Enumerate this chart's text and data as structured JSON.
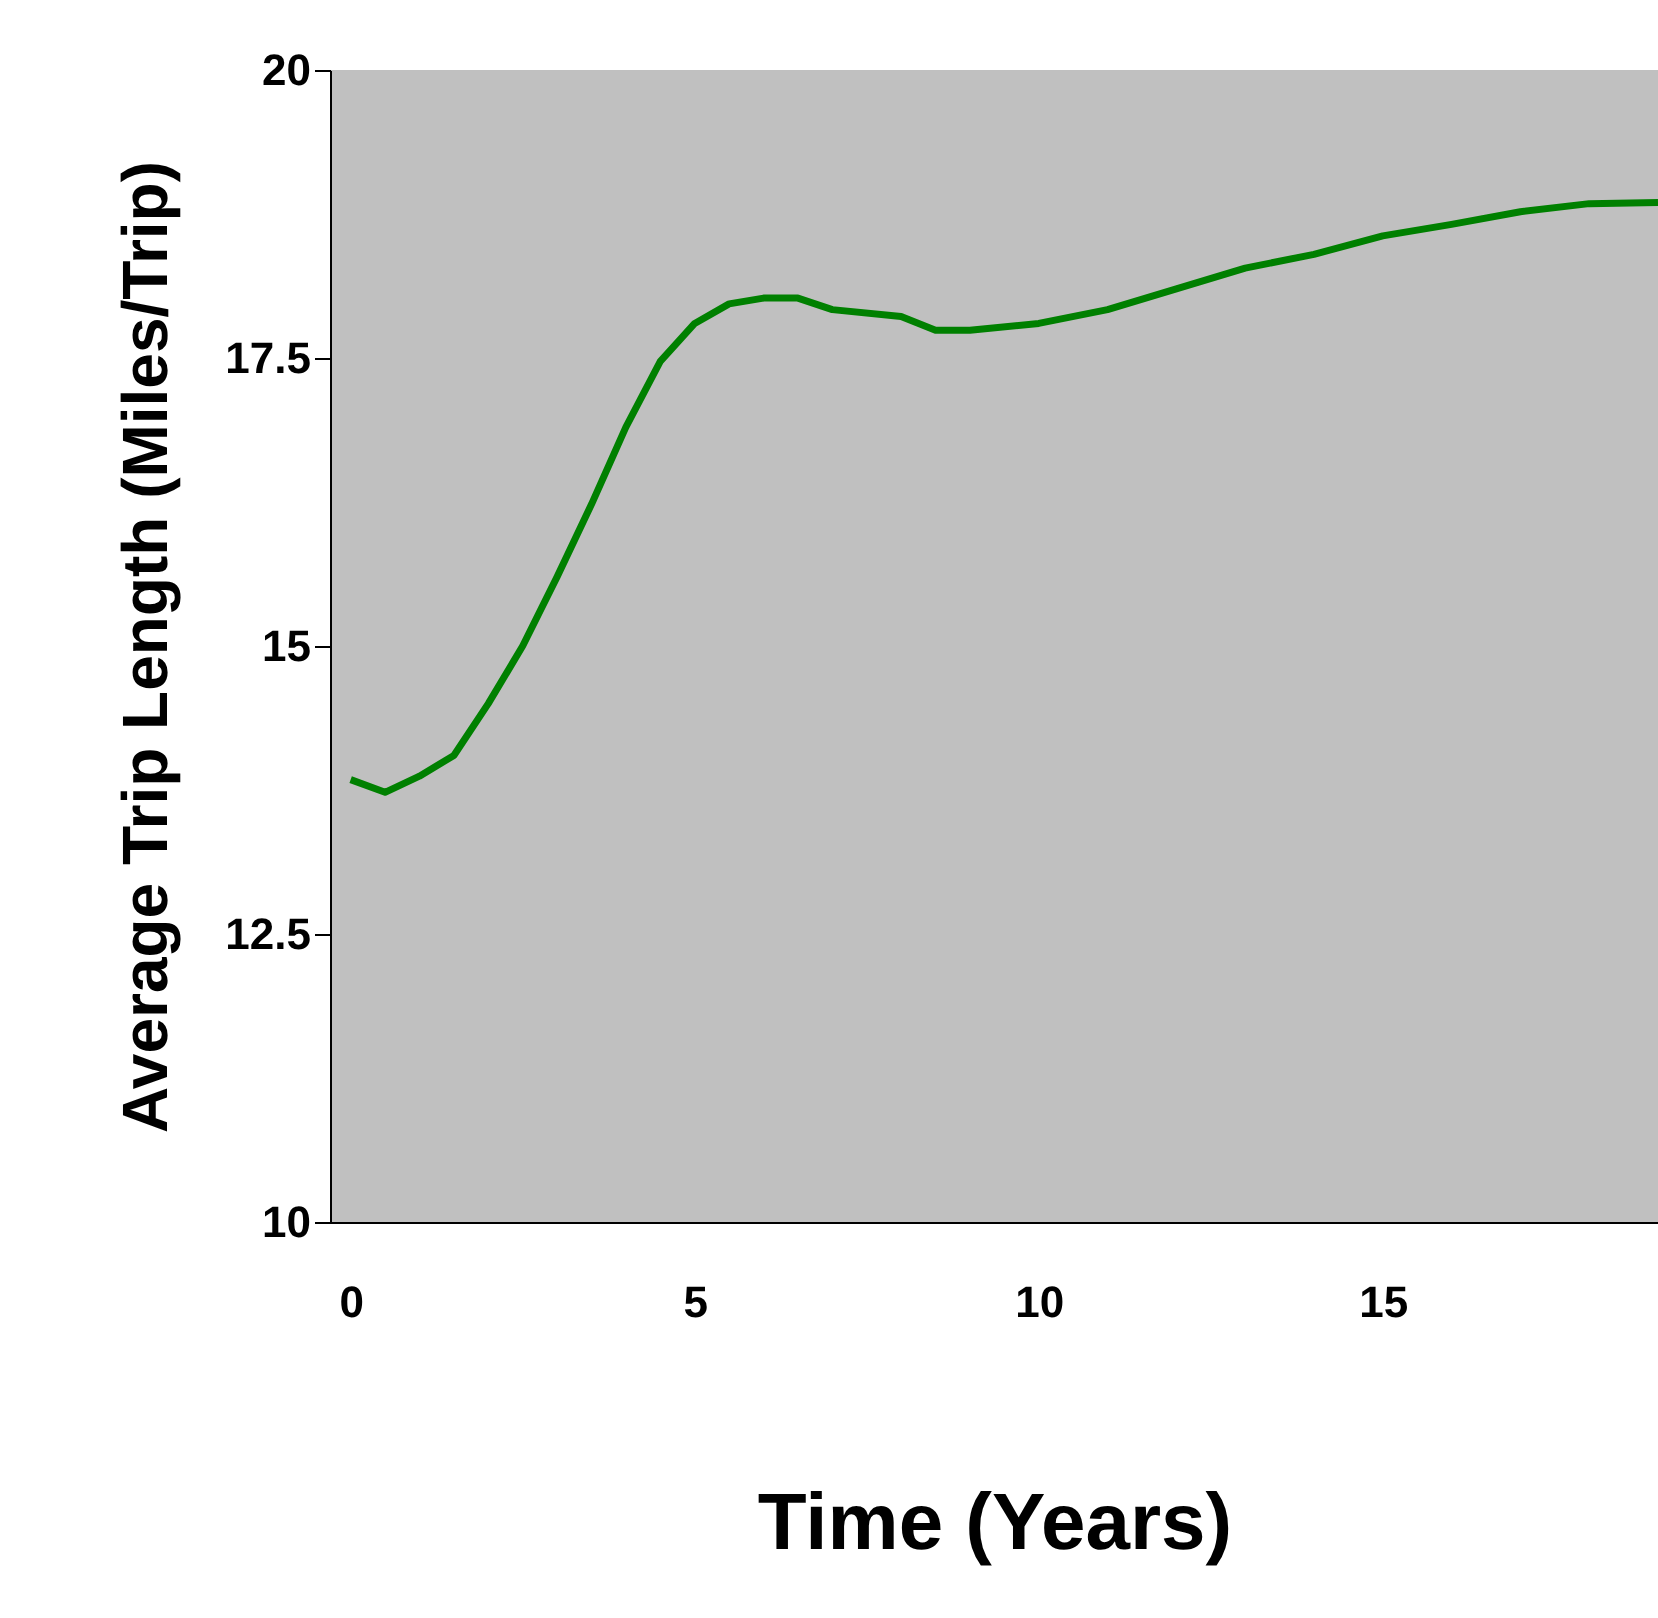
{
  "chart_data": {
    "type": "line",
    "xlabel": "Time (Years)",
    "ylabel": "Average Trip Length (Miles/Trip)",
    "x": [
      0,
      0.5,
      1,
      1.5,
      2,
      2.5,
      3,
      3.5,
      4,
      4.5,
      5,
      5.5,
      6,
      6.5,
      7,
      8,
      8.5,
      9,
      10,
      11,
      12,
      13,
      14,
      15,
      16,
      17,
      18,
      19
    ],
    "series": [
      {
        "color": "#008000",
        "values": [
          13.84,
          13.73,
          13.87,
          14.05,
          14.5,
          15.0,
          15.6,
          16.23,
          16.9,
          17.47,
          17.8,
          17.97,
          18.02,
          18.02,
          17.92,
          17.86,
          17.74,
          17.74,
          17.8,
          17.92,
          18.1,
          18.28,
          18.4,
          18.56,
          18.66,
          18.77,
          18.84,
          18.85
        ]
      }
    ],
    "xlim": [
      -0.3,
      19
    ],
    "xticks": [
      0,
      5,
      10,
      15
    ],
    "ylim": [
      10,
      20
    ],
    "yticks": [
      10,
      12.5,
      15,
      17.5,
      20
    ],
    "grid": false,
    "legend": false,
    "marker": "none",
    "line_style": "solid"
  }
}
